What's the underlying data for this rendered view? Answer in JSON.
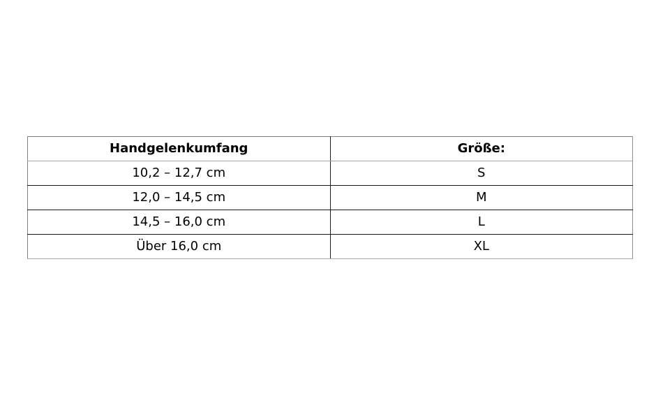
{
  "table": {
    "columns": [
      {
        "header": "Handgelenkumfang"
      },
      {
        "header": "Größe:"
      }
    ],
    "rows": [
      {
        "range": "10,2 – 12,7 cm",
        "size": "S"
      },
      {
        "range": "12,0 – 14,5 cm",
        "size": "M"
      },
      {
        "range": "14,5 – 16,0 cm",
        "size": "L"
      },
      {
        "range": "Über 16,0 cm",
        "size": "XL"
      }
    ]
  },
  "colors": {
    "background": "#ffffff",
    "text": "#000000",
    "outer_border": "#808080",
    "inner_border": "#1a1a1a"
  }
}
